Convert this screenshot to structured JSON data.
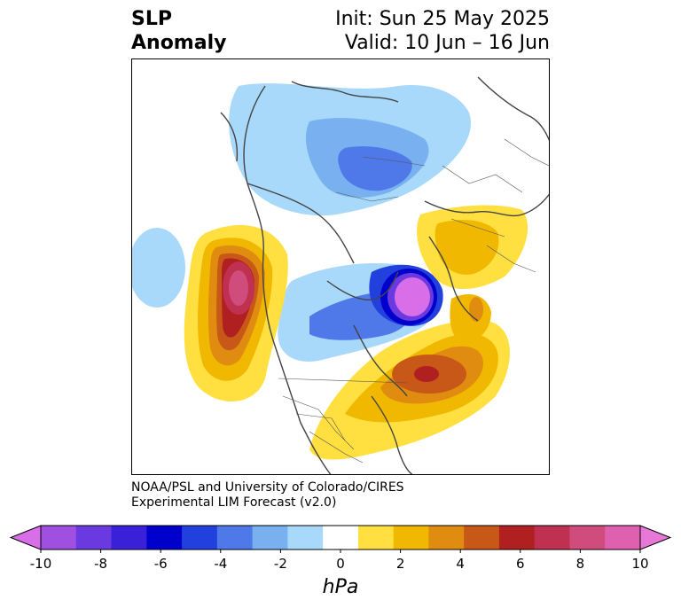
{
  "title": {
    "left_line1": "SLP",
    "left_line2": "Anomaly",
    "init": "Init: Sun 25 May 2025",
    "valid": "Valid: 10 Jun – 16 Jun"
  },
  "credit": {
    "line1": "NOAA/PSL and University of Colorado/CIRES",
    "line2": "Experimental LIM Forecast (v2.0)"
  },
  "colorbar": {
    "unit": "hPa",
    "ticks": [
      "-10",
      "-8",
      "-6",
      "-4",
      "-2",
      "0",
      "2",
      "4",
      "6",
      "8",
      "10"
    ],
    "colors": [
      "#d96fe8",
      "#a050e0",
      "#6a3ae0",
      "#3a20d8",
      "#0000cc",
      "#2240dd",
      "#4f78e8",
      "#78b0f0",
      "#a8d8fa",
      "#ffffff",
      "#ffe040",
      "#f0b800",
      "#e08c10",
      "#c85818",
      "#b02020",
      "#c03050",
      "#d04c7c",
      "#e060b0",
      "#e878d8"
    ]
  }
}
